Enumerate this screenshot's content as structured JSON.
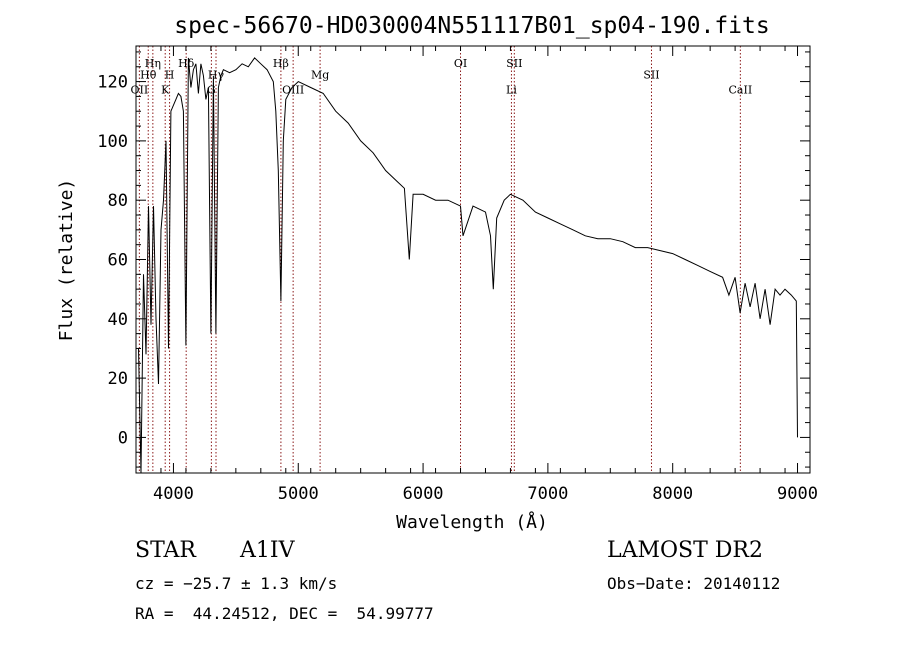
{
  "chart_data": {
    "type": "line",
    "title": "spec-56670-HD030004N551117B01_sp04-190.fits",
    "xlabel": "Wavelength (Å)",
    "ylabel": "Flux (relative)",
    "xlim": [
      3700,
      9100
    ],
    "ylim": [
      -12,
      132
    ],
    "xticks": [
      4000,
      5000,
      6000,
      7000,
      8000,
      9000
    ],
    "yticks": [
      0,
      20,
      40,
      60,
      80,
      100,
      120
    ],
    "grid": false,
    "line_color": "#000000",
    "marker_color": "#8b1a1a",
    "x": [
      3720,
      3740,
      3760,
      3780,
      3800,
      3820,
      3840,
      3860,
      3880,
      3900,
      3920,
      3940,
      3960,
      3980,
      4000,
      4020,
      4040,
      4060,
      4080,
      4100,
      4120,
      4140,
      4160,
      4180,
      4200,
      4220,
      4240,
      4260,
      4280,
      4300,
      4320,
      4340,
      4360,
      4380,
      4400,
      4450,
      4500,
      4550,
      4600,
      4650,
      4700,
      4750,
      4800,
      4820,
      4840,
      4861,
      4880,
      4900,
      4950,
      5000,
      5100,
      5200,
      5300,
      5400,
      5500,
      5600,
      5700,
      5800,
      5850,
      5890,
      5920,
      6000,
      6100,
      6200,
      6300,
      6320,
      6400,
      6500,
      6540,
      6563,
      6590,
      6650,
      6700,
      6800,
      6900,
      7000,
      7100,
      7200,
      7300,
      7400,
      7500,
      7600,
      7700,
      7800,
      7900,
      8000,
      8100,
      8200,
      8300,
      8400,
      8450,
      8500,
      8540,
      8580,
      8620,
      8660,
      8700,
      8740,
      8780,
      8820,
      8860,
      8900,
      8950,
      8990,
      9000
    ],
    "y": [
      30,
      -12,
      55,
      28,
      78,
      38,
      78,
      40,
      18,
      70,
      80,
      100,
      30,
      110,
      112,
      114,
      116,
      115,
      110,
      31,
      128,
      118,
      124,
      126,
      116,
      126,
      122,
      114,
      118,
      35,
      122,
      35,
      118,
      122,
      124,
      123,
      124,
      126,
      125,
      128,
      126,
      124,
      120,
      110,
      90,
      46,
      100,
      114,
      118,
      120,
      118,
      116,
      110,
      106,
      100,
      96,
      90,
      86,
      84,
      60,
      82,
      82,
      80,
      80,
      78,
      68,
      78,
      76,
      68,
      50,
      74,
      80,
      82,
      80,
      76,
      74,
      72,
      70,
      68,
      67,
      67,
      66,
      64,
      64,
      63,
      62,
      60,
      58,
      56,
      54,
      48,
      54,
      42,
      52,
      44,
      52,
      40,
      50,
      38,
      50,
      48,
      50,
      48,
      46,
      0
    ],
    "annotations": [
      {
        "label": "OII",
        "wavelength": 3727,
        "label_y": 116
      },
      {
        "label": "Hθ",
        "wavelength": 3798,
        "label_y": 121
      },
      {
        "label": "Hη",
        "wavelength": 3835,
        "label_y": 125
      },
      {
        "label": "K",
        "wavelength": 3934,
        "label_y": 116
      },
      {
        "label": "H",
        "wavelength": 3969,
        "label_y": 121
      },
      {
        "label": "Hδ",
        "wavelength": 4102,
        "label_y": 125
      },
      {
        "label": "G",
        "wavelength": 4304,
        "label_y": 116
      },
      {
        "label": "Hγ",
        "wavelength": 4341,
        "label_y": 121
      },
      {
        "label": "Hβ",
        "wavelength": 4861,
        "label_y": 125
      },
      {
        "label": "OIII",
        "wavelength": 4959,
        "label_y": 116
      },
      {
        "label": "Mg",
        "wavelength": 5175,
        "label_y": 121
      },
      {
        "label": "OI",
        "wavelength": 6300,
        "label_y": 125
      },
      {
        "label": "Li",
        "wavelength": 6708,
        "label_y": 116
      },
      {
        "label": "SII",
        "wavelength": 6731,
        "label_y": 125
      },
      {
        "label": "SII",
        "wavelength": 7830,
        "label_y": 121
      },
      {
        "label": "CaII",
        "wavelength": 8542,
        "label_y": 116
      }
    ]
  },
  "info": {
    "class_label": "STAR",
    "subclass": "A1IV",
    "survey": "LAMOST DR2",
    "velocity": "cz = −25.7 ± 1.3 km/s",
    "obs_date": "Obs−Date: 20140112",
    "coords": "RA =  44.24512, DEC =  54.99777"
  }
}
